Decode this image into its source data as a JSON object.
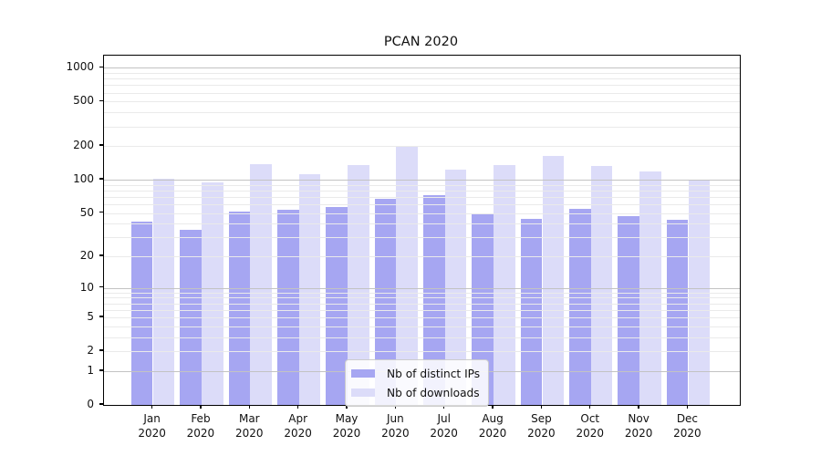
{
  "title": "PCAN 2020",
  "colors": {
    "distinct_ips": "#a6a6f2",
    "downloads": "#dcdcf9",
    "grid_major": "#c3c3c3",
    "grid_minor": "#eaeaea",
    "spine": "#000000",
    "legend_border": "#cccccc"
  },
  "y_axis": {
    "ticks": [
      0,
      1,
      2,
      5,
      10,
      20,
      50,
      100,
      200,
      500,
      1000
    ]
  },
  "x_axis": {
    "months": [
      "Jan",
      "Feb",
      "Mar",
      "Apr",
      "May",
      "Jun",
      "Jul",
      "Aug",
      "Sep",
      "Oct",
      "Nov",
      "Dec"
    ],
    "year": "2020"
  },
  "legend": {
    "items": [
      {
        "label": "Nb of distinct IPs",
        "series": "distinct_ips"
      },
      {
        "label": "Nb of downloads",
        "series": "downloads"
      }
    ]
  },
  "chart_data": {
    "type": "bar",
    "title": "PCAN 2020",
    "categories": [
      "Jan 2020",
      "Feb 2020",
      "Mar 2020",
      "Apr 2020",
      "May 2020",
      "Jun 2020",
      "Jul 2020",
      "Aug 2020",
      "Sep 2020",
      "Oct 2020",
      "Nov 2020",
      "Dec 2020"
    ],
    "series": [
      {
        "name": "Nb of distinct IPs",
        "color": "#a6a6f2",
        "values": [
          42,
          35,
          52,
          54,
          57,
          67,
          73,
          50,
          44,
          55,
          47,
          43
        ]
      },
      {
        "name": "Nb of downloads",
        "color": "#dcdcf9",
        "values": [
          102,
          95,
          139,
          112,
          135,
          200,
          123,
          135,
          163,
          133,
          119,
          100
        ]
      }
    ],
    "yscale": "symlog: y ~ ln(1+v)",
    "yticks": [
      0,
      1,
      2,
      5,
      10,
      20,
      50,
      100,
      200,
      500,
      1000
    ],
    "ylim": [
      0,
      1280
    ],
    "grid": true,
    "legend_position": "lower center"
  }
}
